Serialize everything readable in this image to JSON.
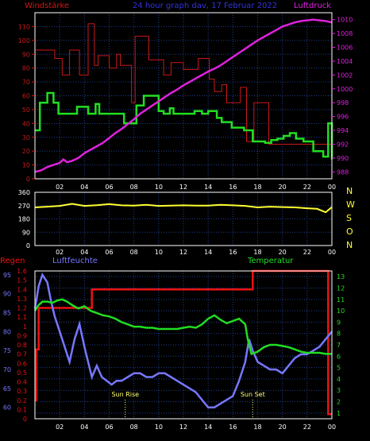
{
  "colors": {
    "wind": "#cc1818",
    "windgust": "#cc1818",
    "windavg": "#22dd22",
    "pressure": "#dd22dd",
    "direction": "#ffff30",
    "rain": "#ee1111",
    "humidity": "#7777ff",
    "temperature": "#22dd22",
    "grid": "#1f3f8f",
    "frame": "#ffffff",
    "sun": "#ffff70"
  },
  "header": {
    "left_title": "Windstärke",
    "center_title": "24 hour graph dav, 17 Februar 2022",
    "right_title": "Luftdruck"
  },
  "time_ticks": [
    "02",
    "04",
    "06",
    "08",
    "10",
    "12",
    "14",
    "16",
    "18",
    "20",
    "22",
    "00"
  ],
  "chart_data": [
    {
      "type": "line",
      "name": "wind-pressure",
      "y_left": {
        "range": [
          0,
          120
        ],
        "ticks": [
          0,
          10,
          20,
          30,
          40,
          50,
          60,
          70,
          80,
          90,
          100,
          110
        ]
      },
      "y_right": {
        "range": [
          987,
          1011
        ],
        "ticks": [
          988,
          990,
          992,
          994,
          996,
          998,
          1000,
          1002,
          1004,
          1006,
          1008,
          1010
        ]
      },
      "x_range": [
        0,
        24
      ],
      "series": [
        {
          "key": "gust",
          "step": true,
          "x": [
            0,
            0.5,
            1.6,
            2.2,
            2.8,
            3.6,
            4.3,
            4.8,
            5.1,
            6.0,
            6.6,
            6.9,
            7.8,
            8.1,
            9.2,
            10.4,
            11.0,
            12.0,
            13.2,
            14.1,
            14.5,
            15.1,
            15.5,
            16.6,
            17.1,
            17.7,
            18.9,
            24
          ],
          "values": [
            93,
            93,
            87,
            75,
            93,
            75,
            112,
            82,
            89,
            80,
            90,
            82,
            55,
            103,
            86,
            75,
            84,
            79,
            87,
            72,
            63,
            68,
            55,
            66,
            27,
            55,
            25,
            25
          ]
        },
        {
          "key": "avg",
          "step": true,
          "x": [
            0,
            0.4,
            1.0,
            1.5,
            1.9,
            3.1,
            3.4,
            4.3,
            4.9,
            5.2,
            6.6,
            7.2,
            8.2,
            8.8,
            10.0,
            10.4,
            10.9,
            11.2,
            12.4,
            12.9,
            13.5,
            14.0,
            14.7,
            15.1,
            15.9,
            16.9,
            17.6,
            18.6,
            19.1,
            19.6,
            20.1,
            20.6,
            21.1,
            21.7,
            22.5,
            23.3,
            23.7,
            24
          ],
          "values": [
            35,
            55,
            62,
            55,
            47,
            47,
            52,
            47,
            54,
            47,
            47,
            40,
            53,
            60,
            49,
            47,
            51,
            47,
            47,
            49,
            47,
            49,
            44,
            41,
            37,
            35,
            27,
            26,
            28,
            29,
            31,
            33,
            29,
            27,
            20,
            16,
            40,
            14
          ]
        },
        {
          "key": "pressure",
          "axis": "right",
          "step": false,
          "x": [
            0,
            0.5,
            1.0,
            1.5,
            2.0,
            2.3,
            2.6,
            3.0,
            3.5,
            4.0,
            4.5,
            5.0,
            5.5,
            6.0,
            6.5,
            7.0,
            7.5,
            8.0,
            8.5,
            9.0,
            9.5,
            10.0,
            10.5,
            11.0,
            11.5,
            12.0,
            12.5,
            13.0,
            13.5,
            14.0,
            14.5,
            15.0,
            15.5,
            16.0,
            16.5,
            17.0,
            17.5,
            18.0,
            18.5,
            19.0,
            19.5,
            20.0,
            20.5,
            21.0,
            21.5,
            22.0,
            22.5,
            23.0,
            23.5,
            24.0
          ],
          "values": [
            988.0,
            988.2,
            988.7,
            989.0,
            989.3,
            989.8,
            989.4,
            989.6,
            990.0,
            990.7,
            991.2,
            991.7,
            992.2,
            992.9,
            993.6,
            994.2,
            994.9,
            995.6,
            996.4,
            997.0,
            997.6,
            998.2,
            998.8,
            999.4,
            999.9,
            1000.5,
            1001.0,
            1001.5,
            1002.0,
            1002.5,
            1002.9,
            1003.4,
            1004.0,
            1004.6,
            1005.2,
            1005.8,
            1006.4,
            1007.0,
            1007.5,
            1008.0,
            1008.5,
            1009.0,
            1009.3,
            1009.6,
            1009.8,
            1009.9,
            1010.0,
            1009.9,
            1009.8,
            1009.6
          ]
        }
      ]
    },
    {
      "type": "line",
      "name": "wind-direction",
      "y_left": {
        "range": [
          0,
          360
        ],
        "ticks": [
          0,
          90,
          180,
          270,
          360
        ]
      },
      "compass": [
        "N",
        "W",
        "S",
        "O",
        "N"
      ],
      "x_range": [
        0,
        24
      ],
      "series": [
        {
          "key": "direction",
          "step": false,
          "x": [
            0,
            1,
            2,
            3,
            4,
            5,
            6,
            7,
            8,
            9,
            10,
            11,
            12,
            13,
            14,
            15,
            16,
            17,
            18,
            19,
            20,
            21,
            22,
            22.8,
            23.5,
            24
          ],
          "values": [
            258,
            263,
            268,
            282,
            268,
            273,
            280,
            272,
            270,
            275,
            268,
            270,
            272,
            270,
            270,
            275,
            272,
            268,
            258,
            263,
            260,
            258,
            252,
            248,
            225,
            260
          ]
        }
      ]
    },
    {
      "type": "line",
      "name": "rain-humidity-temperature",
      "y_left": {
        "range": [
          0,
          1.6
        ],
        "ticks": [
          0,
          0.1,
          0.2,
          0.3,
          0.4,
          0.5,
          0.6,
          0.7,
          0.8,
          0.9,
          1.0,
          1.1,
          1.2,
          1.3,
          1.4,
          1.5,
          1.6
        ]
      },
      "y_hum": {
        "range": [
          57,
          96
        ],
        "ticks": [
          60,
          65,
          70,
          75,
          80,
          85,
          90,
          95
        ]
      },
      "y_right": {
        "range": [
          0.5,
          13.5
        ],
        "ticks": [
          1,
          2,
          3,
          4,
          5,
          6,
          7,
          8,
          9,
          10,
          11,
          12,
          13
        ]
      },
      "x_range": [
        0,
        24
      ],
      "labels": {
        "rain": "Regen",
        "humidity": "Luftfeuchte",
        "temperature": "Temperatur",
        "sunrise": "Sun Rise",
        "sunset": "Sun Set"
      },
      "sunrise_x": 7.3,
      "sunset_x": 17.6,
      "series": [
        {
          "key": "rain",
          "step": true,
          "x": [
            0,
            0.1,
            0.3,
            1.0,
            4.6,
            17.6,
            23.7,
            24
          ],
          "values": [
            0.2,
            0.75,
            1.2,
            1.2,
            1.4,
            1.6,
            0.05,
            0.05
          ]
        },
        {
          "key": "humidity",
          "axis": "hum",
          "step": false,
          "x": [
            0,
            0.3,
            0.6,
            1.0,
            1.3,
            1.6,
            2.0,
            2.4,
            2.8,
            3.2,
            3.6,
            4.0,
            4.3,
            4.6,
            5.0,
            5.4,
            5.8,
            6.2,
            6.6,
            7.0,
            7.5,
            8.0,
            8.5,
            9.0,
            9.5,
            10.0,
            10.5,
            11.0,
            11.5,
            12.0,
            12.5,
            13.0,
            13.5,
            14.0,
            14.5,
            15.0,
            15.5,
            16.0,
            16.5,
            17.0,
            17.3,
            17.6,
            18.0,
            18.5,
            19.0,
            19.5,
            20.0,
            20.5,
            21.0,
            21.5,
            22.0,
            22.5,
            23.0,
            23.5,
            24.0
          ],
          "values": [
            86,
            92,
            95,
            93,
            88,
            84,
            80,
            76,
            72,
            78,
            82,
            76,
            72,
            68,
            71,
            68,
            67,
            66,
            67,
            67,
            68,
            69,
            69,
            68,
            68,
            69,
            69,
            68,
            67,
            66,
            65,
            64,
            62,
            60,
            60,
            61,
            62,
            63,
            67,
            72,
            78,
            75,
            72,
            71,
            70,
            70,
            69,
            71,
            73,
            74,
            74,
            75,
            76,
            78,
            80
          ]
        },
        {
          "key": "temperature",
          "axis": "right",
          "step": false,
          "x": [
            0,
            0.3,
            0.6,
            1.0,
            1.4,
            1.8,
            2.2,
            2.6,
            3.0,
            3.5,
            4.0,
            4.5,
            5.0,
            5.5,
            6.0,
            6.5,
            7.0,
            7.5,
            8.0,
            8.5,
            9.0,
            9.5,
            10.0,
            10.5,
            11.0,
            11.5,
            12.0,
            12.5,
            13.0,
            13.5,
            14.0,
            14.5,
            15.0,
            15.5,
            16.0,
            16.5,
            17.0,
            17.2,
            17.5,
            18.0,
            18.5,
            19.0,
            19.5,
            20.0,
            20.5,
            21.0,
            21.5,
            22.0,
            22.5,
            23.0,
            23.5,
            24.0
          ],
          "values": [
            10.0,
            10.5,
            10.8,
            10.8,
            10.7,
            10.9,
            11.0,
            10.8,
            10.5,
            10.2,
            10.4,
            10.0,
            9.8,
            9.6,
            9.5,
            9.3,
            9.0,
            8.8,
            8.6,
            8.6,
            8.5,
            8.5,
            8.4,
            8.4,
            8.4,
            8.4,
            8.5,
            8.6,
            8.5,
            8.8,
            9.3,
            9.6,
            9.2,
            8.9,
            9.1,
            9.3,
            8.8,
            7.5,
            6.2,
            6.4,
            6.8,
            7.0,
            7.0,
            6.9,
            6.8,
            6.6,
            6.4,
            6.3,
            6.3,
            6.3,
            6.2,
            6.2
          ]
        }
      ]
    }
  ]
}
